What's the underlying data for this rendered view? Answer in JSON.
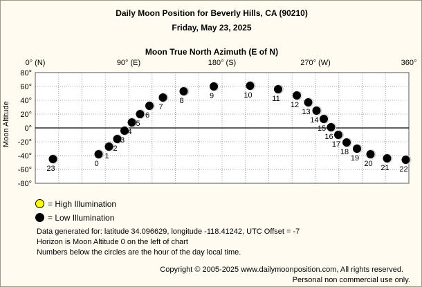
{
  "header": {
    "title": "Daily Moon Position for Beverly Hills, CA (90210)",
    "date": "Friday, May 23, 2025"
  },
  "legend": {
    "high": "= High Illumination",
    "low": "= Low Illumination"
  },
  "info": {
    "line1": "Data generated for: latitude 34.096629, longitude -118.41242, UTC Offset = -7",
    "line2": "Horizon is Moon Altitude 0 on the left of chart",
    "line3": "Numbers below the circles are the hour of the day local time."
  },
  "footer": {
    "copyright": "Copyright © 2005-2025 www.dailymoonposition.com, All rights reserved.",
    "usage": "Personal non commercial use only."
  },
  "colors": {
    "background": "#fffbf0",
    "grid": "#a0a0a0",
    "low_illumination": "#000000",
    "high_illumination": "#ffff00"
  },
  "chart_data": {
    "type": "scatter",
    "xlabel": "Moon True North Azimuth (E of N)",
    "ylabel": "Moon Altitude",
    "xlim": [
      0,
      360
    ],
    "ylim": [
      -80,
      80
    ],
    "x_tick_labels": [
      {
        "value": 0,
        "label": "0° (N)"
      },
      {
        "value": 90,
        "label": "90° (E)"
      },
      {
        "value": 180,
        "label": "180° (S)"
      },
      {
        "value": 270,
        "label": "270° (W)"
      },
      {
        "value": 360,
        "label": "360°"
      }
    ],
    "y_tick_labels": [
      "80°",
      "60°",
      "40°",
      "20°",
      "0°",
      "-20°",
      "-40°",
      "-60°",
      "-80°"
    ],
    "y_ticks": [
      80,
      60,
      40,
      20,
      0,
      -20,
      -40,
      -60,
      -80
    ],
    "grid": true,
    "illumination": "low",
    "points": [
      {
        "hour": "0",
        "az": 61,
        "alt": -38
      },
      {
        "hour": "1",
        "az": 71,
        "alt": -27
      },
      {
        "hour": "2",
        "az": 79,
        "alt": -16
      },
      {
        "hour": "3",
        "az": 86,
        "alt": -4
      },
      {
        "hour": "4",
        "az": 93,
        "alt": 8
      },
      {
        "hour": "5",
        "az": 101,
        "alt": 20
      },
      {
        "hour": "6",
        "az": 110,
        "alt": 32
      },
      {
        "hour": "7",
        "az": 123,
        "alt": 44
      },
      {
        "hour": "8",
        "az": 143,
        "alt": 53
      },
      {
        "hour": "9",
        "az": 172,
        "alt": 60
      },
      {
        "hour": "10",
        "az": 207,
        "alt": 61
      },
      {
        "hour": "11",
        "az": 234,
        "alt": 56
      },
      {
        "hour": "12",
        "az": 252,
        "alt": 47
      },
      {
        "hour": "13",
        "az": 263,
        "alt": 37
      },
      {
        "hour": "14",
        "az": 271,
        "alt": 25
      },
      {
        "hour": "15",
        "az": 278,
        "alt": 13
      },
      {
        "hour": "16",
        "az": 285,
        "alt": 1
      },
      {
        "hour": "17",
        "az": 292,
        "alt": -10
      },
      {
        "hour": "18",
        "az": 300,
        "alt": -21
      },
      {
        "hour": "19",
        "az": 310,
        "alt": -30
      },
      {
        "hour": "20",
        "az": 323,
        "alt": -38
      },
      {
        "hour": "21",
        "az": 339,
        "alt": -44
      },
      {
        "hour": "22",
        "az": 357,
        "alt": -46
      },
      {
        "hour": "23",
        "az": 17,
        "alt": -45
      }
    ]
  }
}
